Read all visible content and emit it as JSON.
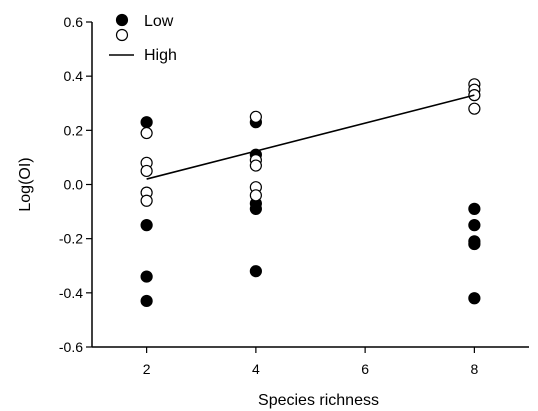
{
  "chart_data": {
    "type": "scatter",
    "xlabel": "Species richness",
    "ylabel": "Log(OI)",
    "xlim": [
      1,
      9
    ],
    "ylim": [
      -0.6,
      0.6
    ],
    "x_ticks": [
      "2",
      "4",
      "6",
      "8"
    ],
    "y_ticks": [
      "-0.6",
      "-0.4",
      "-0.2",
      "0.0",
      "0.2",
      "0.4",
      "0.6"
    ],
    "grid": false,
    "legend_position": "top-left",
    "series": [
      {
        "name": "Low",
        "marker": "filled-circle",
        "color": "#000000",
        "points": [
          {
            "x": 2,
            "y": 0.23
          },
          {
            "x": 2,
            "y": -0.15
          },
          {
            "x": 2,
            "y": -0.34
          },
          {
            "x": 2,
            "y": -0.43
          },
          {
            "x": 4,
            "y": 0.23
          },
          {
            "x": 4,
            "y": 0.11
          },
          {
            "x": 4,
            "y": -0.07
          },
          {
            "x": 4,
            "y": -0.09
          },
          {
            "x": 4,
            "y": -0.32
          },
          {
            "x": 8,
            "y": -0.09
          },
          {
            "x": 8,
            "y": -0.15
          },
          {
            "x": 8,
            "y": -0.21
          },
          {
            "x": 8,
            "y": -0.22
          },
          {
            "x": 8,
            "y": -0.42
          }
        ]
      },
      {
        "name": "High",
        "marker": "open-circle",
        "color": "#000000",
        "points": [
          {
            "x": 2,
            "y": 0.19
          },
          {
            "x": 2,
            "y": 0.08
          },
          {
            "x": 2,
            "y": 0.05
          },
          {
            "x": 2,
            "y": -0.03
          },
          {
            "x": 2,
            "y": -0.06
          },
          {
            "x": 4,
            "y": 0.25
          },
          {
            "x": 4,
            "y": 0.09
          },
          {
            "x": 4,
            "y": 0.07
          },
          {
            "x": 4,
            "y": -0.01
          },
          {
            "x": 4,
            "y": -0.04
          },
          {
            "x": 8,
            "y": 0.37
          },
          {
            "x": 8,
            "y": 0.35
          },
          {
            "x": 8,
            "y": 0.33
          },
          {
            "x": 8,
            "y": 0.28
          }
        ],
        "fit_line": [
          {
            "x": 2,
            "y": 0.02
          },
          {
            "x": 8,
            "y": 0.33
          }
        ]
      }
    ],
    "legend": [
      {
        "label": "Low",
        "symbol": "filled-circle"
      },
      {
        "label": "",
        "symbol": "open-circle"
      },
      {
        "label": "High",
        "symbol": "line"
      }
    ]
  }
}
